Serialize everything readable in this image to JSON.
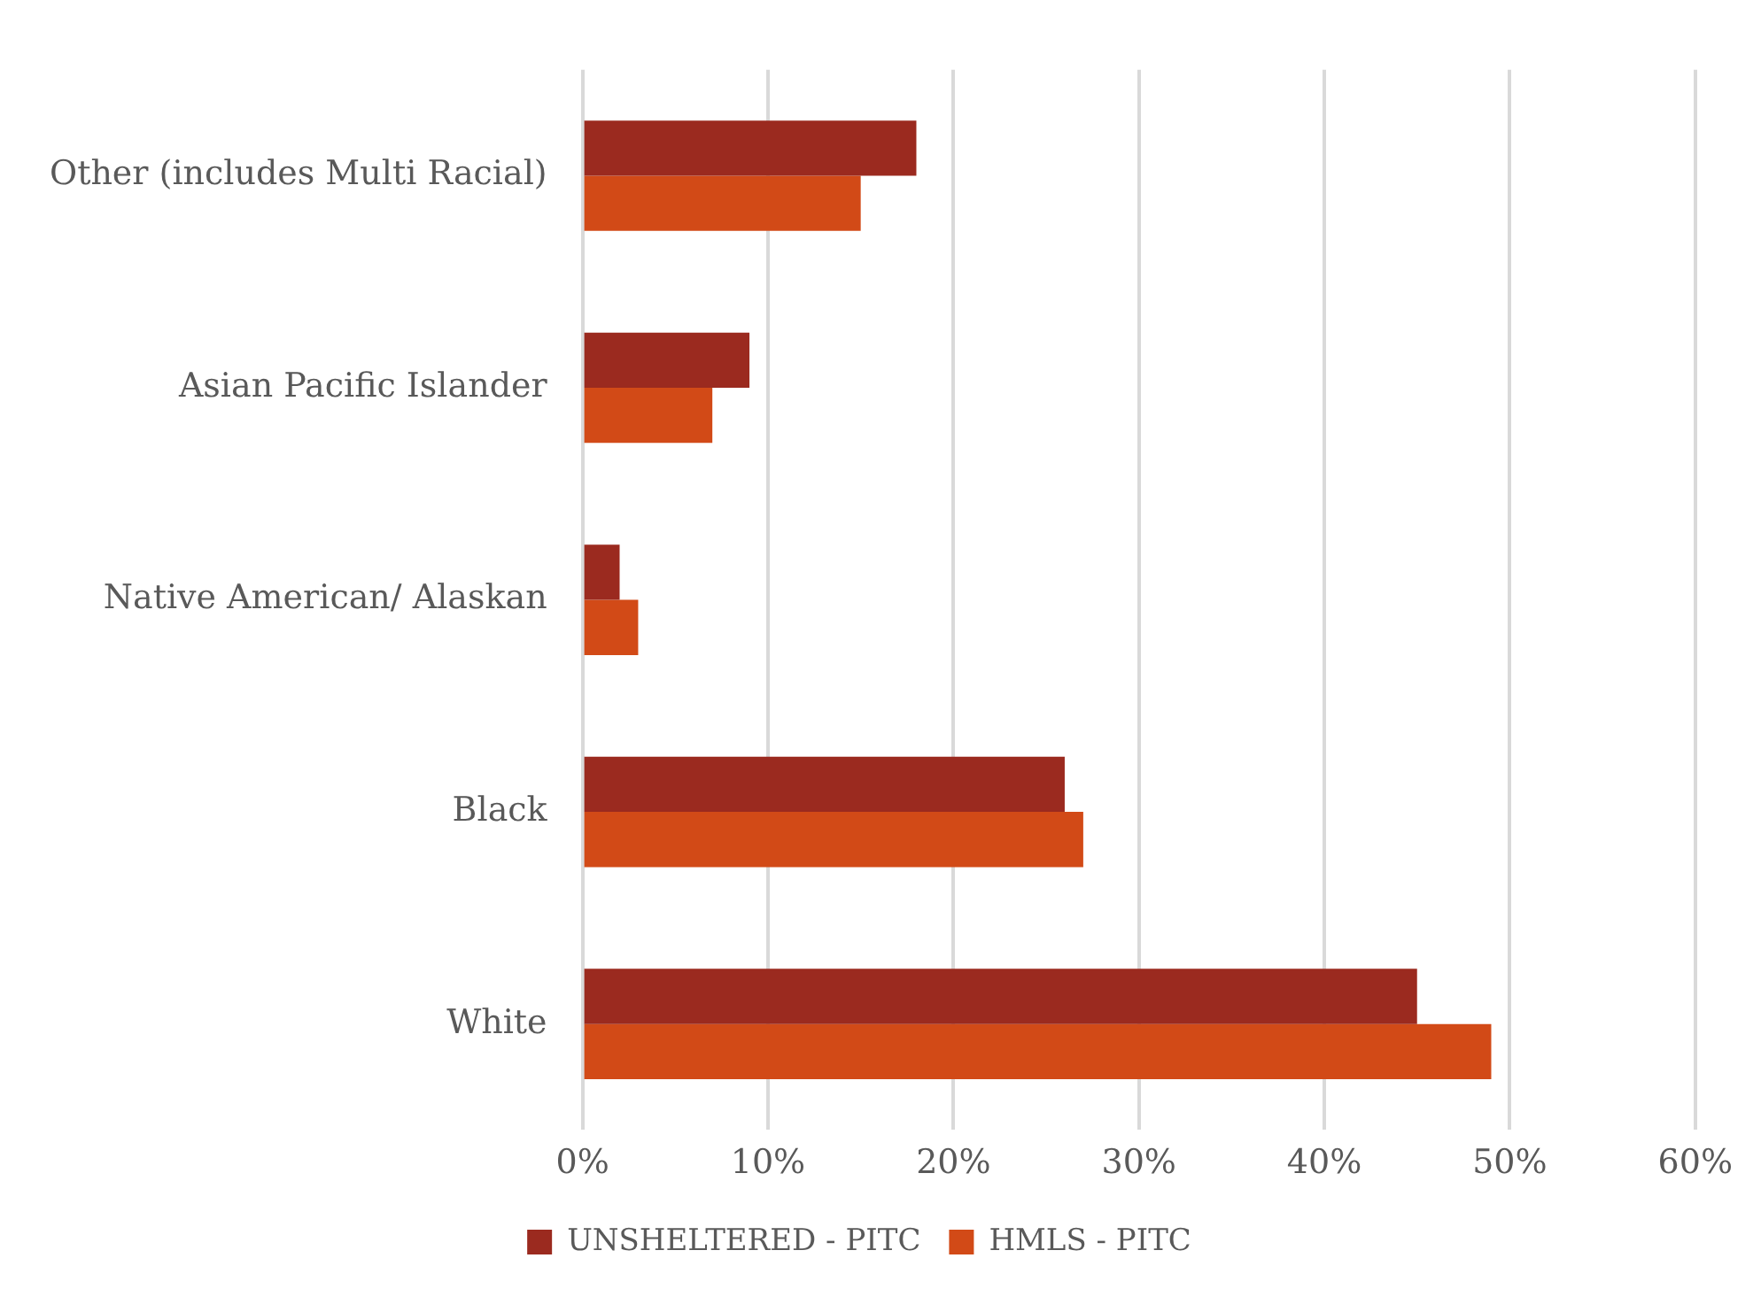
{
  "chart_data": {
    "type": "bar",
    "orientation": "horizontal",
    "categories": [
      "Other (includes Multi Racial)",
      "Asian Pacific Islander",
      "Native American/ Alaskan",
      "Black",
      "White"
    ],
    "series": [
      {
        "name": "UNSHELTERED - PITC",
        "color": "#9b2a1f",
        "values": [
          18,
          9,
          2,
          26,
          45
        ]
      },
      {
        "name": "HMLS - PITC",
        "color": "#d24a17",
        "values": [
          15,
          7,
          3,
          27,
          49
        ]
      }
    ],
    "xlim": [
      0,
      60
    ],
    "xticks": [
      {
        "value": 0,
        "label": "0%"
      },
      {
        "value": 10,
        "label": "10%"
      },
      {
        "value": 20,
        "label": "20%"
      },
      {
        "value": 30,
        "label": "30%"
      },
      {
        "value": 40,
        "label": "40%"
      },
      {
        "value": 50,
        "label": "50%"
      },
      {
        "value": 60,
        "label": "60%"
      }
    ],
    "grid": "x",
    "legend": "bottom"
  }
}
